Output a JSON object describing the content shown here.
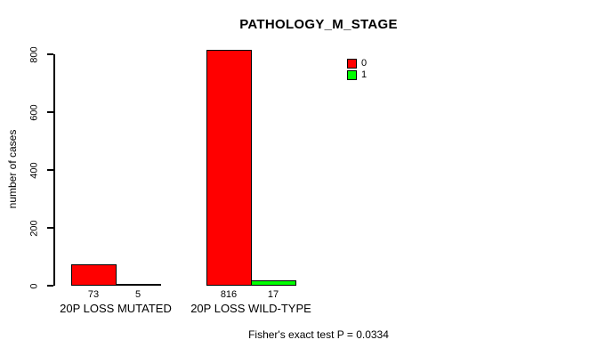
{
  "chart_data": {
    "type": "bar",
    "title": "PATHOLOGY_M_STAGE",
    "xlabel": "",
    "ylabel": "number of cases",
    "categories": [
      "20P LOSS MUTATED",
      "20P LOSS WILD-TYPE"
    ],
    "series": [
      {
        "name": "0",
        "color": "#ff0000",
        "values": [
          73,
          816
        ]
      },
      {
        "name": "1",
        "color": "#00ff00",
        "values": [
          5,
          17
        ]
      }
    ],
    "ylim": [
      0,
      800
    ],
    "yticks": [
      0,
      200,
      400,
      600,
      800
    ],
    "grid": false,
    "legend_position": "top-right",
    "bar_value_labels": true,
    "caption": "Fisher's exact test P = 0.0334"
  },
  "colors": {
    "background": "#ffffff",
    "axis": "#000000",
    "text": "#000000",
    "series_0": "#ff0000",
    "series_1": "#00ff00"
  }
}
